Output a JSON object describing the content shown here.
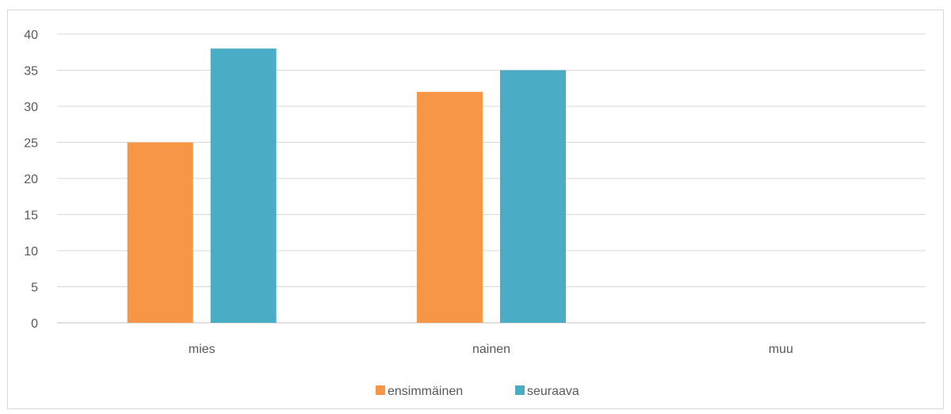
{
  "chart_data": {
    "type": "bar",
    "categories": [
      "mies",
      "nainen",
      "muu"
    ],
    "series": [
      {
        "name": "ensimmäinen",
        "color": "#F79646",
        "values": [
          25,
          32,
          0
        ]
      },
      {
        "name": "seuraava",
        "color": "#4BACC6",
        "values": [
          38,
          35,
          0
        ]
      }
    ],
    "ylim": [
      0,
      40
    ],
    "yticks": [
      "0",
      "5",
      "10",
      "15",
      "20",
      "25",
      "30",
      "35",
      "40"
    ],
    "grid": true,
    "legend": "bottom"
  }
}
